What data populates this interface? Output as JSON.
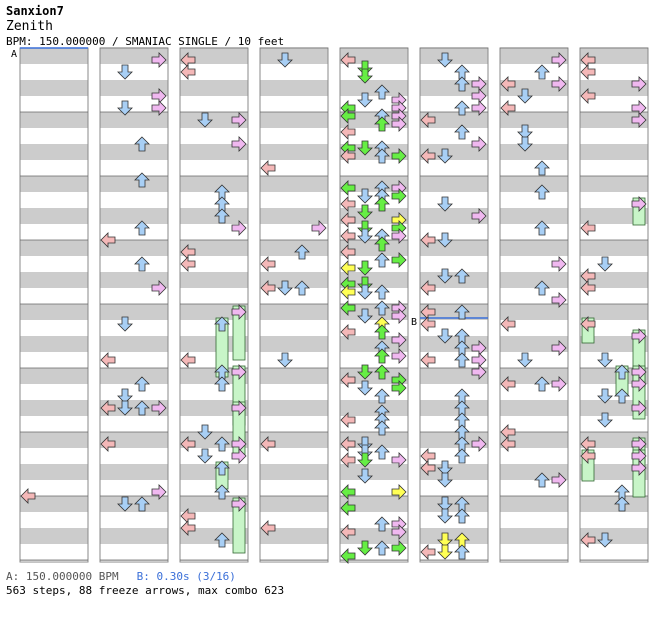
{
  "header": {
    "title": "Sanxion7",
    "song": "Zenith",
    "info": "BPM: 150.000000 / SMANIAC SINGLE / 10 feet"
  },
  "markers": {
    "a": "A",
    "b": "B"
  },
  "footer": {
    "bpm_line": "A: 150.000000 BPM",
    "stop_line": "B: 0.30s (3/16)",
    "stats": "563 steps, 88 freeze arrows, max combo 623"
  },
  "colors": {
    "stripe": "#cccccc",
    "left_arrow": "#f4b8b8",
    "down_arrow": "#a8cff5",
    "up_arrow": "#a8cff5",
    "right_arrow": "#f0b8f0",
    "freeze": "#c8f5c8",
    "sixteenth": "#66ee44",
    "yellow": "#ffff55",
    "stop_line": "#3a6fd8"
  }
}
